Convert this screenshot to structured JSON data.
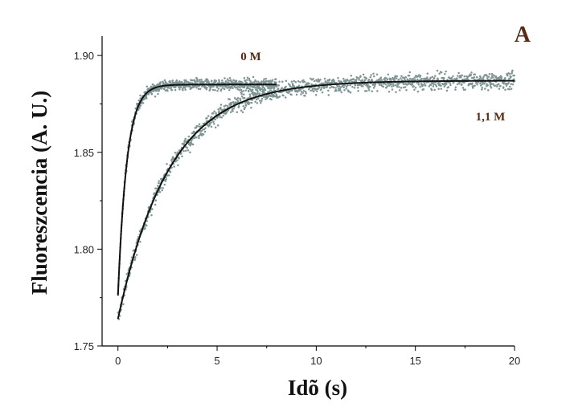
{
  "chart_data": {
    "type": "scatter",
    "panel_label": "A",
    "xlabel": "Idõ (s)",
    "ylabel": "Fluoreszcencia (A. U.)",
    "xlim": [
      -0.8,
      20
    ],
    "ylim": [
      1.75,
      1.91
    ],
    "x_ticks": [
      0,
      5,
      10,
      15,
      20
    ],
    "x_tick_labels": [
      "0",
      "5",
      "10",
      "15",
      "20"
    ],
    "y_ticks": [
      1.75,
      1.8,
      1.85,
      1.9
    ],
    "y_tick_labels": [
      "1.75",
      "1.80",
      "1.85",
      "1.90"
    ],
    "grid": false,
    "colors": {
      "points": "#7f9593",
      "fit": "#111111",
      "labels": "#5a2a14"
    },
    "series": [
      {
        "name": "0 M",
        "x_range": [
          0,
          8
        ],
        "fit": {
          "y0": 1.776,
          "y_inf": 1.885,
          "tau": 0.45
        },
        "noise": 0.0025,
        "points": 700
      },
      {
        "name": "1,1 M",
        "x_range": [
          0,
          20
        ],
        "fit": {
          "y0": 1.764,
          "y_inf": 1.887,
          "tau": 2.6
        },
        "noise": 0.0035,
        "points": 1300
      }
    ]
  }
}
